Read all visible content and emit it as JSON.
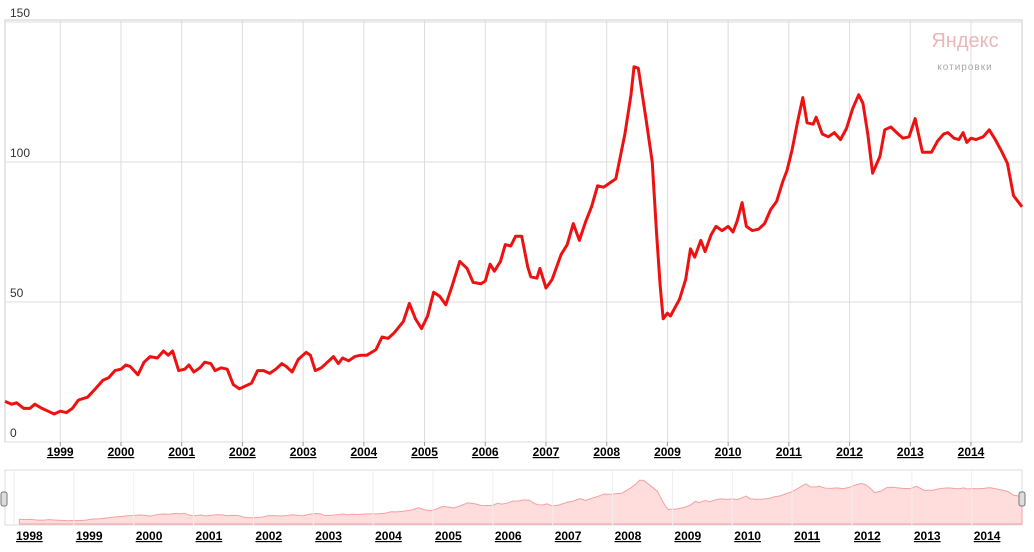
{
  "chart_data": {
    "type": "line",
    "color": "#ee1111",
    "x": [
      1998.09,
      1998.2,
      1998.28,
      1998.4,
      1998.5,
      1998.58,
      1998.7,
      1998.8,
      1998.9,
      1999.0,
      1999.1,
      1999.2,
      1999.3,
      1999.45,
      1999.6,
      1999.7,
      1999.8,
      1999.9,
      2000.0,
      2000.08,
      2000.15,
      2000.28,
      2000.38,
      2000.48,
      2000.6,
      2000.7,
      2000.78,
      2000.85,
      2000.95,
      2001.05,
      2001.12,
      2001.2,
      2001.3,
      2001.38,
      2001.48,
      2001.55,
      2001.65,
      2001.75,
      2001.85,
      2001.95,
      2002.05,
      2002.15,
      2002.25,
      2002.35,
      2002.45,
      2002.55,
      2002.65,
      2002.72,
      2002.82,
      2002.92,
      2003.05,
      2003.12,
      2003.2,
      2003.3,
      2003.4,
      2003.5,
      2003.58,
      2003.65,
      2003.75,
      2003.85,
      2003.95,
      2004.05,
      2004.2,
      2004.3,
      2004.4,
      2004.5,
      2004.65,
      2004.75,
      2004.85,
      2004.95,
      2005.05,
      2005.15,
      2005.25,
      2005.35,
      2005.45,
      2005.58,
      2005.7,
      2005.8,
      2005.93,
      2006.0,
      2006.08,
      2006.15,
      2006.25,
      2006.33,
      2006.42,
      2006.5,
      2006.6,
      2006.7,
      2006.75,
      2006.85,
      2006.9,
      2007.0,
      2007.1,
      2007.25,
      2007.35,
      2007.45,
      2007.55,
      2007.65,
      2007.75,
      2007.85,
      2007.95,
      2008.05,
      2008.15,
      2008.3,
      2008.4,
      2008.45,
      2008.52,
      2008.65,
      2008.75,
      2008.82,
      2008.88,
      2008.93,
      2009.0,
      2009.05,
      2009.2,
      2009.3,
      2009.38,
      2009.45,
      2009.55,
      2009.62,
      2009.72,
      2009.8,
      2009.9,
      2010.0,
      2010.08,
      2010.15,
      2010.23,
      2010.3,
      2010.4,
      2010.5,
      2010.6,
      2010.7,
      2010.8,
      2010.9,
      2010.97,
      2011.05,
      2011.15,
      2011.23,
      2011.3,
      2011.4,
      2011.45,
      2011.55,
      2011.65,
      2011.75,
      2011.85,
      2011.95,
      2012.05,
      2012.15,
      2012.22,
      2012.3,
      2012.38,
      2012.5,
      2012.58,
      2012.68,
      2012.8,
      2012.88,
      2012.98,
      2013.08,
      2013.2,
      2013.35,
      2013.45,
      2013.55,
      2013.62,
      2013.72,
      2013.8,
      2013.87,
      2013.93,
      2014.0,
      2014.08,
      2014.2,
      2014.3,
      2014.4,
      2014.5,
      2014.6,
      2014.7,
      2014.84
    ],
    "values": [
      14.5,
      13.5,
      14,
      12,
      12,
      13.5,
      12,
      11,
      10,
      11,
      10.5,
      12,
      15,
      16,
      19.5,
      22,
      23,
      25.5,
      26,
      27.5,
      27,
      24,
      28.5,
      30.5,
      30,
      32.5,
      31,
      32.5,
      25.5,
      26,
      27.5,
      25,
      26.5,
      28.5,
      28,
      25.5,
      26.5,
      26,
      20.5,
      19,
      20,
      21,
      25.5,
      25.5,
      24.5,
      26,
      28,
      27,
      25,
      29.5,
      32,
      31,
      25.5,
      26.5,
      28.5,
      30.5,
      28,
      30,
      29,
      30.5,
      31,
      31,
      33,
      37.5,
      37,
      39,
      43,
      49.5,
      44,
      40.5,
      45,
      53.5,
      52,
      49,
      55.5,
      64.5,
      62,
      57,
      56.5,
      57.5,
      63.5,
      61,
      64.5,
      70.5,
      70,
      73.5,
      73.5,
      62.5,
      59,
      58.5,
      62,
      55,
      58,
      67,
      70.5,
      78,
      72,
      78.5,
      84,
      91.5,
      91,
      92.5,
      94,
      110,
      124,
      134,
      133.5,
      115,
      100,
      75,
      56,
      44,
      46,
      45,
      51,
      58,
      69,
      66,
      72,
      68,
      74,
      77,
      75.5,
      77,
      75,
      79,
      85.5,
      77,
      75.5,
      76,
      78,
      83,
      86,
      93,
      97,
      104,
      115,
      123,
      114,
      113.5,
      116,
      110,
      109,
      110.5,
      108,
      112,
      119,
      124,
      121,
      110,
      96,
      102,
      111.5,
      112.5,
      110,
      108.5,
      109,
      115.5,
      103.5,
      103.5,
      107.5,
      110,
      110.5,
      108.5,
      108,
      110.5,
      107,
      108.5,
      108,
      109,
      111.5,
      108,
      104,
      99.5,
      88,
      84
    ],
    "xlim": [
      1998.09,
      2014.84
    ],
    "ylim": [
      0,
      150
    ],
    "xticks": [
      1999,
      2000,
      2001,
      2002,
      2003,
      2004,
      2005,
      2006,
      2007,
      2008,
      2009,
      2010,
      2011,
      2012,
      2013,
      2014
    ],
    "yticks": [
      0,
      50,
      100,
      150
    ],
    "grid": true
  },
  "brand": {
    "name": "Яндекс",
    "subtitle": "котировки"
  },
  "navigator": {
    "xlim": [
      1997.85,
      2014.84
    ],
    "xticks": [
      1998,
      1999,
      2000,
      2001,
      2002,
      2003,
      2004,
      2005,
      2006,
      2007,
      2008,
      2009,
      2010,
      2011,
      2012,
      2013,
      2014
    ]
  }
}
